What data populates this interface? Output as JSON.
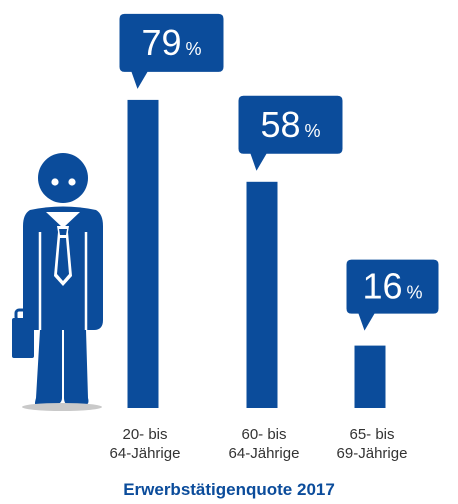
{
  "colors": {
    "accent": "#0b4c9b",
    "text": "#333333",
    "background": "#ffffff"
  },
  "icons": [
    "businessman-icon",
    "briefcase-icon",
    "tie-icon"
  ],
  "caption": "Erwerbstätigenquote 2017",
  "chart_data": {
    "type": "bar",
    "title": "Erwerbstätigenquote 2017",
    "categories": [
      [
        "20- bis",
        "64-Jährige"
      ],
      [
        "60- bis",
        "64-Jährige"
      ],
      [
        "65- bis",
        "69-Jährige"
      ]
    ],
    "values": [
      79,
      58,
      16
    ],
    "unit": "%",
    "ylim": [
      0,
      100
    ],
    "grid": false,
    "legend": "none",
    "data_labels": "speech-bubble callouts above bars"
  }
}
